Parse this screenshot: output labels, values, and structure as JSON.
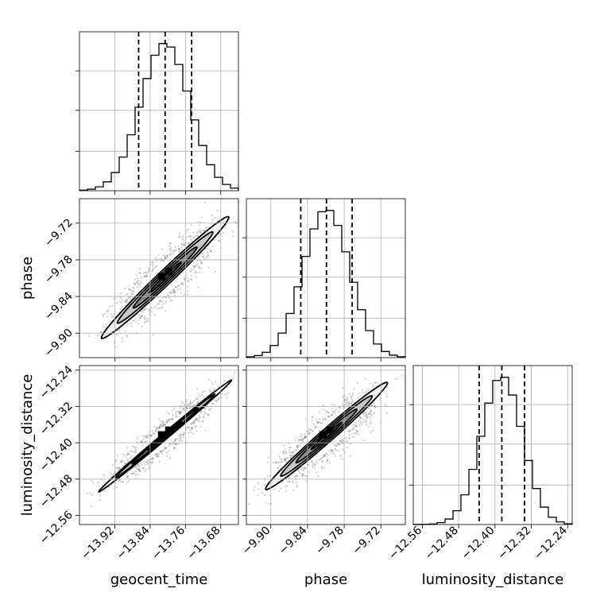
{
  "chart_data": {
    "type": "corner",
    "parameters": [
      "geocent_time",
      "phase",
      "luminosity_distance"
    ],
    "ranges": [
      [
        -14.0,
        -13.64
      ],
      [
        -9.94,
        -9.68
      ],
      [
        -12.58,
        -12.23
      ]
    ],
    "means": [
      -13.806,
      -9.809,
      -12.385
    ],
    "sigmas": [
      0.055,
      0.038,
      0.045
    ],
    "correlations": {
      "0_1": 0.85,
      "0_2": 0.93,
      "1_2": 0.85
    },
    "quantiles": [
      [
        -13.866,
        -13.806,
        -13.746
      ],
      [
        -9.851,
        -9.809,
        -9.767
      ],
      [
        -12.435,
        -12.385,
        -12.335
      ]
    ],
    "ticks": [
      [
        "−13.92",
        "−13.84",
        "−13.76",
        "−13.68"
      ],
      [
        "−9.90",
        "−9.84",
        "−9.78",
        "−9.72"
      ],
      [
        "−12.56",
        "−12.48",
        "−12.40",
        "−12.32",
        "−12.24"
      ]
    ],
    "tick_values": [
      [
        -13.92,
        -13.84,
        -13.76,
        -13.68
      ],
      [
        -9.9,
        -9.84,
        -9.78,
        -9.72
      ],
      [
        -12.56,
        -12.48,
        -12.4,
        -12.32,
        -12.24
      ]
    ],
    "xlabels": [
      "geocent_time",
      "phase",
      "luminosity_distance"
    ],
    "ylabels": [
      "",
      "phase",
      "luminosity_distance"
    ],
    "grid": true,
    "colors": {
      "line": "#000000",
      "points": "#555555",
      "grid": "#b0b0b0"
    }
  }
}
